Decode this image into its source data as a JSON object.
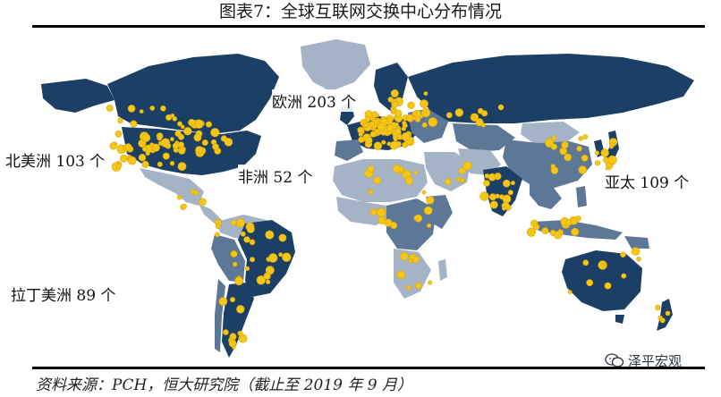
{
  "title": "图表7：全球互联网交换中心分布情况",
  "source": "资料来源：PCH，恒大研究院（截止至 2019 年 9 月）",
  "watermark": "泽平宏观",
  "regions": {
    "north_america": "北美洲 103 个",
    "europe": "欧洲 203 个",
    "africa": "非洲 52 个",
    "asia_pacific": "亚太 109 个",
    "latin_america": "拉丁美洲 89 个"
  },
  "legend_colors": {
    "high_density": "#1c3f66",
    "medium_density": "#5d7896",
    "low_density": "#a4b3c6",
    "no_exchange": "#ffffff",
    "exchange_point": "#f5c518"
  },
  "icons": [
    "wechat-icon"
  ]
}
